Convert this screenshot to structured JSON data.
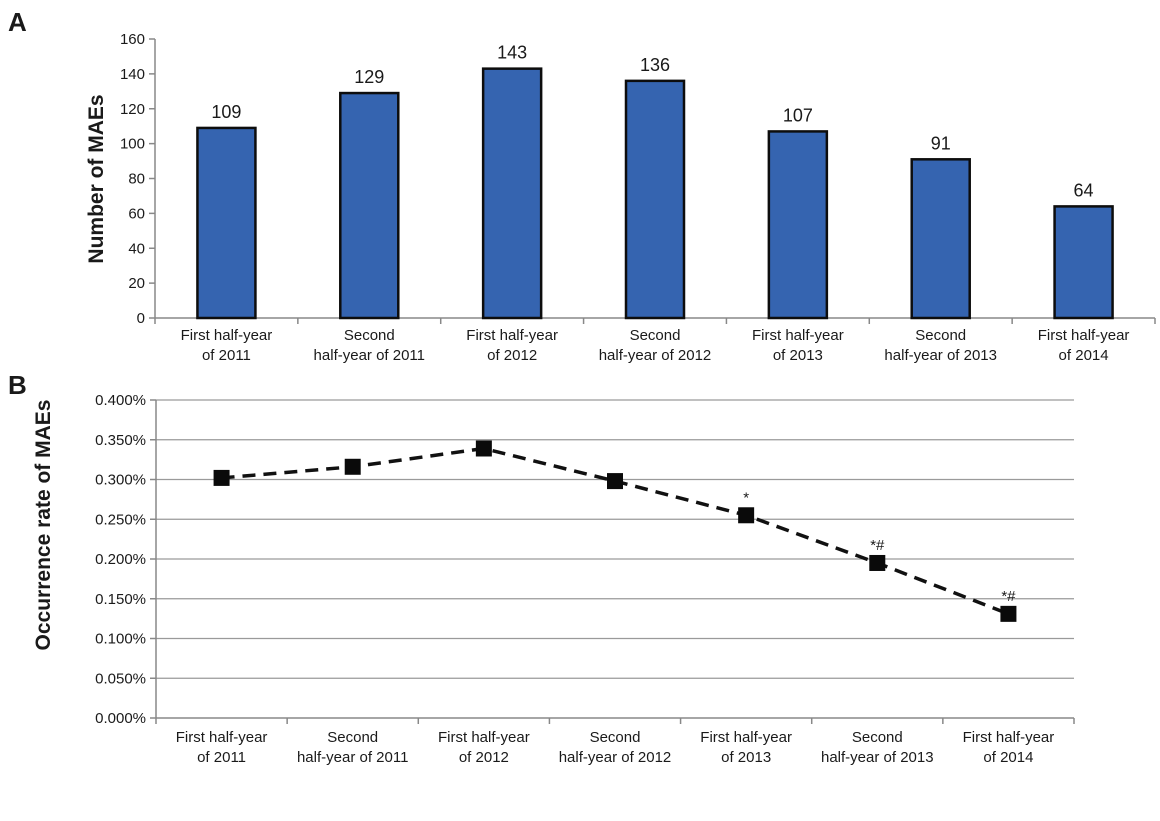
{
  "chart_data": [
    {
      "panel": "A",
      "type": "bar",
      "categories": [
        [
          "First half-year",
          "of 2011"
        ],
        [
          "Second",
          "half-year of 2011"
        ],
        [
          "First half-year",
          "of 2012"
        ],
        [
          "Second",
          "half-year of 2012"
        ],
        [
          "First half-year",
          "of 2013"
        ],
        [
          "Second",
          "half-year of 2013"
        ],
        [
          "First half-year",
          "of 2014"
        ]
      ],
      "values": [
        109,
        129,
        143,
        136,
        107,
        91,
        64
      ],
      "data_labels": [
        "109",
        "129",
        "143",
        "136",
        "107",
        "91",
        "64"
      ],
      "ylabel": "Number of MAEs",
      "ylim": [
        0,
        160
      ],
      "yticks": [
        "0",
        "20",
        "40",
        "60",
        "80",
        "100",
        "120",
        "140",
        "160"
      ],
      "grid": false,
      "bar_color": "#3564b0"
    },
    {
      "panel": "B",
      "type": "line",
      "categories": [
        [
          "First half-year",
          "of 2011"
        ],
        [
          "Second",
          "half-year of 2011"
        ],
        [
          "First half-year",
          "of 2012"
        ],
        [
          "Second",
          "half-year of 2012"
        ],
        [
          "First half-year",
          "of 2013"
        ],
        [
          "Second",
          "half-year of 2013"
        ],
        [
          "First half-year",
          "of 2014"
        ]
      ],
      "values": [
        0.00302,
        0.00316,
        0.00339,
        0.00298,
        0.00255,
        0.00195,
        0.00131
      ],
      "annotations": [
        "",
        "",
        "",
        "",
        "*",
        "*#",
        "*#"
      ],
      "ylabel": "Occurrence rate of MAEs",
      "ylim": [
        0,
        0.004
      ],
      "yticks": [
        "0.000%",
        "0.050%",
        "0.100%",
        "0.150%",
        "0.200%",
        "0.250%",
        "0.300%",
        "0.350%",
        "0.400%"
      ],
      "grid": true,
      "line_style": "dashed",
      "marker": "square",
      "line_color": "#111111"
    }
  ]
}
